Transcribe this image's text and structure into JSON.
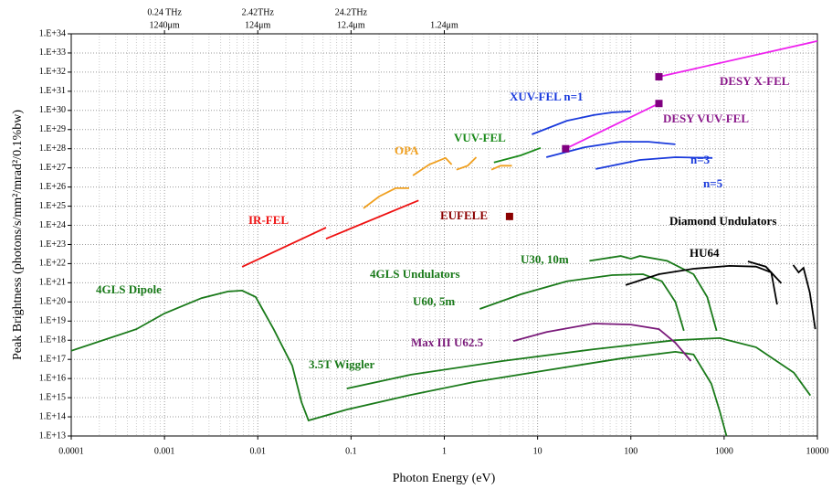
{
  "chart_data": {
    "type": "line",
    "xlabel": "Photon Energy (eV)",
    "ylabel": "Peak Brightness (photons/s/mm²/mrad²/0.1%bw)",
    "xscale": "log",
    "yscale": "log",
    "grid": true,
    "xlim": [
      0.0001,
      10000
    ],
    "xticks": [
      0.0001,
      0.001,
      0.01,
      0.1,
      1,
      10,
      100,
      1000,
      10000
    ],
    "ylim": [
      10000000000000.0,
      1e+34
    ],
    "yticks": [
      {
        "value": 10000000000000.0,
        "label": "1.E+13"
      },
      {
        "value": 100000000000000.0,
        "label": "1.E+14"
      },
      {
        "value": 1000000000000000.0,
        "label": "1.E+15"
      },
      {
        "value": 1e+16,
        "label": "1.E+16"
      },
      {
        "value": 1e+17,
        "label": "1.E+17"
      },
      {
        "value": 1e+18,
        "label": "1.E+18"
      },
      {
        "value": 1e+19,
        "label": "1.E+19"
      },
      {
        "value": 1e+20,
        "label": "1.E+20"
      },
      {
        "value": 1e+21,
        "label": "1.E+21"
      },
      {
        "value": 1e+22,
        "label": "1.E+22"
      },
      {
        "value": 1e+23,
        "label": "1.E+23"
      },
      {
        "value": 1e+24,
        "label": "1.E+24"
      },
      {
        "value": 1e+25,
        "label": "1.E+25"
      },
      {
        "value": 1e+26,
        "label": "1.E+26"
      },
      {
        "value": 1e+27,
        "label": "1.E+27"
      },
      {
        "value": 1e+28,
        "label": "1.E+28"
      },
      {
        "value": 1e+29,
        "label": "1.E+29"
      },
      {
        "value": 1e+30,
        "label": "1.E+30"
      },
      {
        "value": 1e+31,
        "label": "1.E+31"
      },
      {
        "value": 1e+32,
        "label": "1.E+32"
      },
      {
        "value": 1e+33,
        "label": "1.E+33"
      },
      {
        "value": 1e+34,
        "label": "1.E+34"
      }
    ],
    "top_ticks": [
      {
        "value": 0.001,
        "frequency": "0.24 THz",
        "wavelength": "1240μm"
      },
      {
        "value": 0.01,
        "frequency": "2.42THz",
        "wavelength": "124μm"
      },
      {
        "value": 0.1,
        "frequency": "24.2THz",
        "wavelength": "12.4μm"
      },
      {
        "value": 1,
        "wavelength": "1.24μm"
      }
    ],
    "annotations": [
      {
        "text": "4GLS Undulators",
        "color": "#1a7a1a"
      }
    ],
    "series": [
      {
        "name": "4GLS Dipole",
        "color": "#1a7a1a",
        "x": [
          0.0001,
          0.0005,
          0.001,
          0.0025,
          0.0048,
          0.0068,
          0.0095,
          0.0148,
          0.0234,
          0.0294,
          0.035,
          0.09,
          0.44,
          2.1,
          12.5,
          77,
          300,
          470,
          730,
          900,
          1060
        ],
        "values": [
          2.8e+17,
          3.8e+18,
          2.5e+19,
          1.6e+20,
          3.5e+20,
          3.9e+20,
          1.8e+20,
          3.8e+18,
          4.7e+16,
          590000000000000.0,
          65000000000000.0,
          240000000000000.0,
          1400000000000000.0,
          6600000000000000.0,
          2.7e+16,
          1.1e+17,
          2.5e+17,
          1.8e+17,
          5300000000000000.0,
          190000000000000.0,
          10000000000000.0
        ]
      },
      {
        "name": "3.5T Wiggler",
        "color": "#1a7a1a",
        "x": [
          0.09,
          0.44,
          4.2,
          40,
          300,
          900,
          2200,
          5600,
          8400
        ],
        "values": [
          3000000000000000.0,
          1.6e+16,
          8.2e+16,
          3.4e+17,
          1e+18,
          1.3e+18,
          4.3e+17,
          2e+16,
          1300000000000000.0
        ]
      },
      {
        "name": "IR-FEL",
        "color": "#ee1111",
        "label_color": "#ee1111",
        "x": [
          0.0068,
          0.054,
          0.054,
          0.054,
          0.53
        ],
        "values": [
          6.8e+21,
          7.6e+23,
          null,
          2e+23,
          2e+25
        ]
      },
      {
        "name": "OPA",
        "color": "#f0a020",
        "x": [
          0.136,
          0.2,
          0.3,
          0.42,
          0.42,
          0.46,
          0.69,
          1.03,
          1.2,
          1.2,
          1.35,
          1.78,
          2.2,
          2.2,
          3.2,
          4,
          5.3
        ],
        "values": [
          7.7e+24,
          3.2e+25,
          8.7e+25,
          8.7e+25,
          null,
          4e+26,
          1.5e+27,
          3.3e+27,
          1.5e+27,
          null,
          8e+26,
          1.3e+27,
          3.6e+27,
          null,
          8e+26,
          1.3e+27,
          1.3e+27
        ]
      },
      {
        "name": "VUV-FEL",
        "color": "#1a8a1a",
        "x": [
          3.4,
          6.6,
          10.8
        ],
        "values": [
          1.9e+27,
          4.5e+27,
          1.1e+28
        ]
      },
      {
        "name": "XUV-FEL n=1",
        "color": "#1a3adc",
        "x": [
          8.7,
          20.6,
          40,
          63,
          100
        ],
        "values": [
          5.6e+28,
          2.9e+29,
          5.7e+29,
          7.9e+29,
          8.9e+29
        ]
      },
      {
        "name": "n=3",
        "color": "#1a3adc",
        "x": [
          12.4,
          32,
          78,
          155,
          300
        ],
        "values": [
          3.6e+27,
          1.2e+28,
          2.3e+28,
          2.3e+28,
          1.7e+28
        ]
      },
      {
        "name": "n=5",
        "color": "#1a3adc",
        "x": [
          42,
          125,
          300,
          750
        ],
        "values": [
          8.7e+26,
          2.6e+27,
          3.6e+27,
          3.3e+27
        ]
      },
      {
        "name": "DESY VUV-FEL",
        "color": "#ee22ee",
        "label_color": "#8b1a8b",
        "marker": "both",
        "marker_color": "#800080",
        "x": [
          20,
          200
        ],
        "values": [
          1e+28,
          2.3e+30
        ]
      },
      {
        "name": "DESY X-FEL",
        "color": "#ee22ee",
        "label_color": "#8b1a8b",
        "marker": "start",
        "marker_color": "#800080",
        "x": [
          200,
          10000
        ],
        "values": [
          5.7e+31,
          4.2e+33
        ]
      },
      {
        "name": "EUFELE",
        "color": "#8b0000",
        "marker": "both",
        "marker_color": "#8b0000",
        "x": [
          5
        ],
        "values": [
          2.9e+24
        ]
      },
      {
        "name": "U30, 10m",
        "color": "#1a7a1a",
        "x": [
          36,
          78,
          100,
          125,
          245,
          470,
          660,
          830
        ],
        "values": [
          1.4e+22,
          2.5e+22,
          1.8e+22,
          2.5e+22,
          1.4e+22,
          2.8e+21,
          1.8e+20,
          3.1e+18
        ]
      },
      {
        "name": "U60, 5m",
        "color": "#1a7a1a",
        "x": [
          2.4,
          6.6,
          20.6,
          63,
          135,
          215,
          300,
          370
        ],
        "values": [
          4.3e+19,
          2.5e+20,
          1.2e+21,
          2.5e+21,
          2.8e+21,
          1.2e+21,
          1e+20,
          3.1e+18
        ]
      },
      {
        "name": "Max III U62.5",
        "color": "#7a1a7a",
        "x": [
          5.5,
          12.5,
          40,
          100,
          200,
          300,
          440
        ],
        "values": [
          9.1e+17,
          2.7e+18,
          7.4e+18,
          6.6e+18,
          3.8e+18,
          7.4e+17,
          8.2e+16
        ]
      },
      {
        "name": "HU64",
        "color": "#000000",
        "x": [
          88,
          200,
          470,
          1140,
          2200,
          3200,
          3700
        ],
        "values": [
          7.6e+20,
          2.8e+21,
          5.4e+21,
          7.6e+21,
          7e+21,
          3.5e+21,
          7.4e+19
        ]
      },
      {
        "name": "Diamond Undulators",
        "color": "#000000",
        "x": [
          1800,
          2800,
          4100,
          4100,
          5500,
          6300,
          7100,
          8300,
          9500
        ],
        "values": [
          1.3e+22,
          7e+21,
          9.4e+20,
          null,
          8.5e+21,
          3.5e+21,
          6e+21,
          3.1e+20,
          3.8e+18
        ]
      }
    ]
  }
}
